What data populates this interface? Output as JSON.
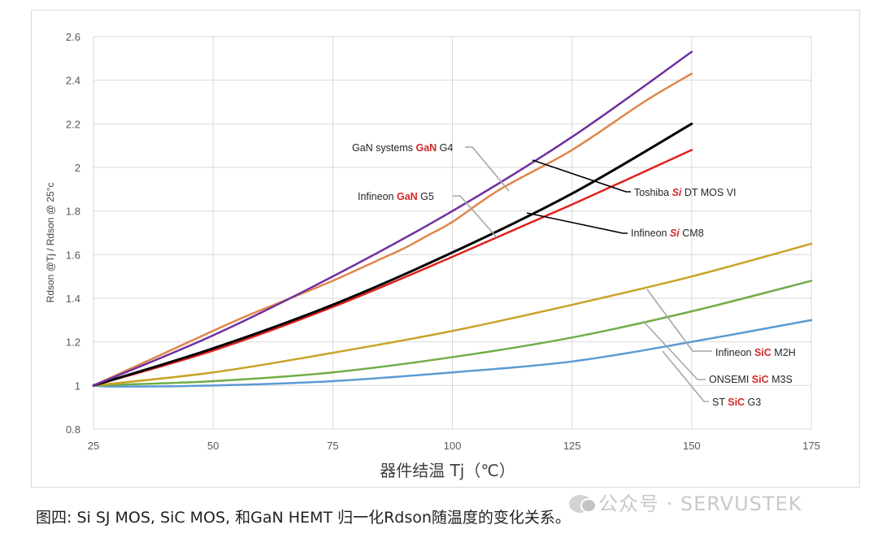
{
  "chart_data": {
    "type": "line",
    "title": "",
    "xlabel": "器件结温 Tj（℃）",
    "ylabel": "Rdson @Tj / Rdson @ 25°c",
    "xlim": [
      25,
      175
    ],
    "ylim": [
      0.8,
      2.6
    ],
    "x_ticks": [
      "25",
      "50",
      "75",
      "100",
      "125",
      "150",
      "175"
    ],
    "y_ticks": [
      "0.8",
      "1",
      "1.2",
      "1.4",
      "1.6",
      "1.8",
      "2",
      "2.2",
      "2.4",
      "2.6"
    ],
    "grid": true,
    "series": [
      {
        "name": "GaN systems GaN G4",
        "color": "#7030a0",
        "width": 2.5,
        "x": [
          25,
          50,
          75,
          100,
          125,
          150
        ],
        "y": [
          1.0,
          1.23,
          1.5,
          1.8,
          2.14,
          2.53
        ]
      },
      {
        "name": "Infineon GaN G5",
        "color": "#e0864a",
        "width": 2.5,
        "x": [
          25,
          40,
          55,
          65,
          75,
          85,
          90,
          95,
          100,
          110,
          125,
          140,
          150
        ],
        "y": [
          1.0,
          1.15,
          1.3,
          1.39,
          1.48,
          1.58,
          1.63,
          1.69,
          1.75,
          1.9,
          2.08,
          2.3,
          2.43
        ]
      },
      {
        "name": "Toshiba Si DT MOS VI",
        "color": "#000000",
        "width": 3,
        "x": [
          25,
          50,
          75,
          100,
          125,
          150
        ],
        "y": [
          1.0,
          1.17,
          1.37,
          1.61,
          1.88,
          2.2
        ]
      },
      {
        "name": "Infineon Si CM8",
        "color": "#e0201b",
        "width": 2.5,
        "x": [
          25,
          50,
          75,
          100,
          125,
          150
        ],
        "y": [
          1.0,
          1.16,
          1.36,
          1.59,
          1.83,
          2.08
        ]
      },
      {
        "name": "Infineon SiC M2H",
        "color": "#c9a227",
        "width": 2.5,
        "x": [
          25,
          50,
          75,
          100,
          125,
          150,
          175
        ],
        "y": [
          1.0,
          1.06,
          1.15,
          1.25,
          1.37,
          1.5,
          1.65
        ]
      },
      {
        "name": "ONSEMI SiC M3S",
        "color": "#70ad47",
        "width": 2.5,
        "x": [
          25,
          50,
          75,
          100,
          125,
          150,
          175
        ],
        "y": [
          1.0,
          1.02,
          1.06,
          1.13,
          1.22,
          1.34,
          1.48
        ]
      },
      {
        "name": "ST SiC G3",
        "color": "#5b9bd5",
        "width": 2.5,
        "x": [
          25,
          30,
          50,
          75,
          100,
          125,
          150,
          175
        ],
        "y": [
          1.0,
          0.995,
          1.0,
          1.02,
          1.06,
          1.11,
          1.2,
          1.3
        ]
      }
    ],
    "annotations": [
      {
        "text_pre": "GaN systems ",
        "text_bold": "GaN",
        "text_post": " G4",
        "style": "bold",
        "series": "GaN systems GaN G4",
        "leader_color": "#a6a6a6"
      },
      {
        "text_pre": "Infineon ",
        "text_bold": "GaN",
        "text_post": " G5",
        "style": "bold",
        "series": "Infineon GaN G5",
        "leader_color": "#a6a6a6"
      },
      {
        "text_pre": "Toshiba ",
        "text_bold": "Si",
        "text_post": " DT MOS VI",
        "style": "bolditalic",
        "series": "Toshiba Si DT MOS VI",
        "leader_color": "#000000"
      },
      {
        "text_pre": "Infineon ",
        "text_bold": "Si",
        "text_post": " CM8",
        "style": "bolditalic",
        "series": "Infineon Si CM8",
        "leader_color": "#000000"
      },
      {
        "text_pre": "Infineon ",
        "text_bold": "SiC",
        "text_post": " M2H",
        "style": "bold",
        "series": "Infineon SiC M2H",
        "leader_color": "#a6a6a6"
      },
      {
        "text_pre": "ONSEMI ",
        "text_bold": "SiC",
        "text_post": " M3S",
        "style": "bold",
        "series": "ONSEMI SiC M3S",
        "leader_color": "#a6a6a6"
      },
      {
        "text_pre": "ST ",
        "text_bold": "SiC",
        "text_post": " G3",
        "style": "bold",
        "series": "ST SiC G3",
        "leader_color": "#a6a6a6"
      }
    ]
  },
  "caption": "图四: Si SJ MOS, SiC MOS, 和GaN HEMT 归一化Rdson随温度的变化关系。",
  "watermark": "公众号 · SERVUSTEK"
}
